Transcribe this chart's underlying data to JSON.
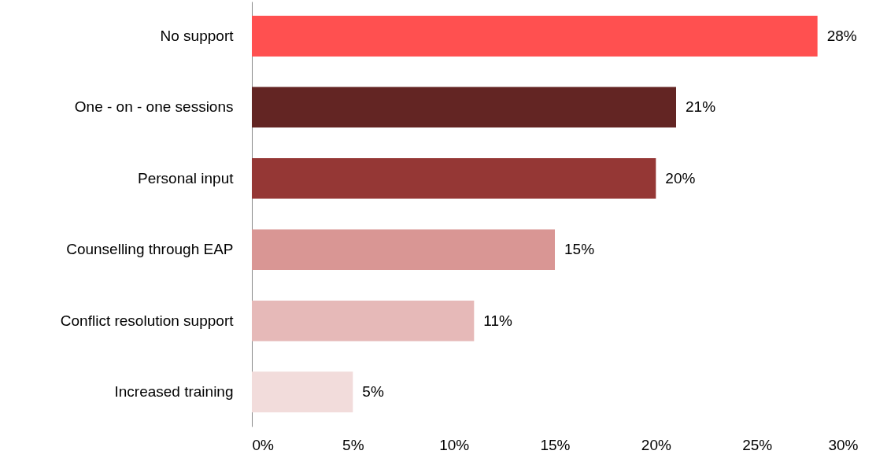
{
  "chart_data": {
    "type": "bar",
    "orientation": "horizontal",
    "categories": [
      "No support",
      "One - on - one sessions",
      "Personal input",
      "Counselling through EAP",
      "Conflict resolution support",
      "Increased training"
    ],
    "values": [
      28,
      21,
      20,
      15,
      11,
      5
    ],
    "colors": [
      "#ff5050",
      "#632523",
      "#953735",
      "#d99694",
      "#e6b9b8",
      "#f2dcdb"
    ],
    "value_labels": [
      "28%",
      "21%",
      "20%",
      "15%",
      "11%",
      "5%"
    ],
    "xlim": [
      0,
      30
    ],
    "xticks": [
      {
        "value": 0,
        "label": "0%"
      },
      {
        "value": 5,
        "label": "5%"
      },
      {
        "value": 10,
        "label": "10%"
      },
      {
        "value": 15,
        "label": "15%"
      },
      {
        "value": 20,
        "label": "20%"
      },
      {
        "value": 25,
        "label": "25%"
      },
      {
        "value": 30,
        "label": "30%"
      }
    ],
    "data_labels": false
  }
}
